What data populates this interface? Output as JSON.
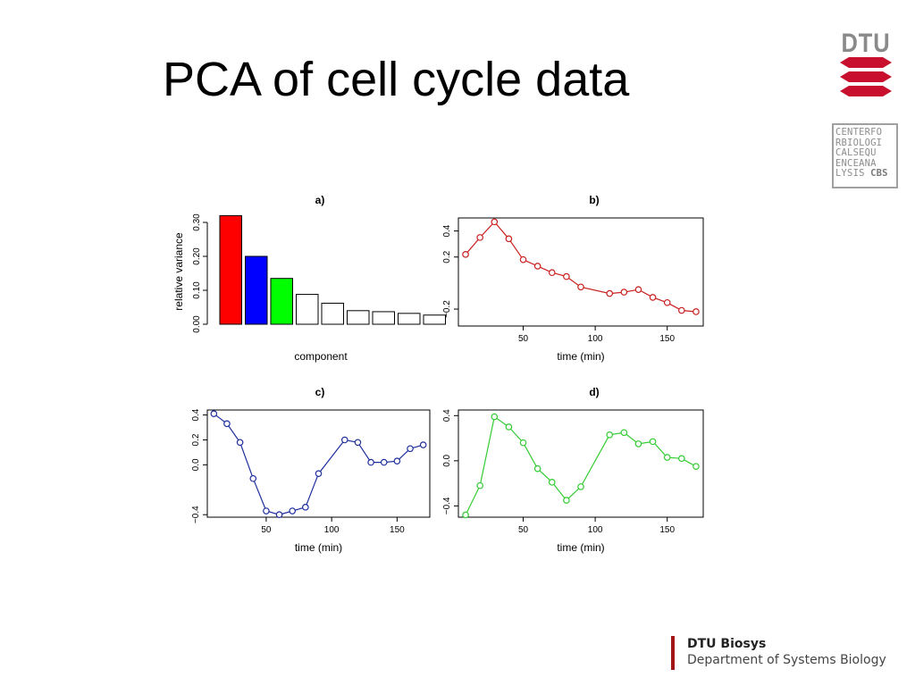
{
  "slide": {
    "title": "PCA of cell cycle data"
  },
  "branding": {
    "logo_text": "DTU",
    "logo_color": "#c8102e",
    "cbs_lines": [
      "CENTERFO",
      "RBIOLOGI",
      "CALSEQU",
      "ENCEANA",
      "LYSIS"
    ],
    "cbs_bold": "CBS",
    "footer_org": "DTU Biosys",
    "footer_dept": "Department of Systems Biology",
    "footer_bar_color": "#a01515"
  },
  "chart_data": [
    {
      "type": "bar",
      "panel": "a)",
      "xlabel": "component",
      "ylabel": "relative variance",
      "ylim": [
        0,
        0.32
      ],
      "yticks": [
        "0.00",
        "0.10",
        "0.20",
        "0.30"
      ],
      "values": [
        0.32,
        0.2,
        0.135,
        0.088,
        0.062,
        0.04,
        0.037,
        0.032,
        0.027
      ],
      "colors": [
        "#ff0000",
        "#0000ff",
        "#00ff00",
        "#ffffff",
        "#ffffff",
        "#ffffff",
        "#ffffff",
        "#ffffff",
        "#ffffff"
      ]
    },
    {
      "type": "line",
      "panel": "b)",
      "xlabel": "time (min)",
      "xlim": [
        5,
        175
      ],
      "ylim": [
        -0.33,
        0.5
      ],
      "xticks": [
        "50",
        "100",
        "150"
      ],
      "yticks": [
        "0.4",
        "0.2",
        "−0.2"
      ],
      "color": "#c8201e",
      "x": [
        10,
        20,
        30,
        40,
        50,
        60,
        70,
        80,
        90,
        110,
        120,
        130,
        140,
        150,
        160,
        170
      ],
      "y": [
        0.22,
        0.35,
        0.47,
        0.34,
        0.18,
        0.13,
        0.08,
        0.05,
        -0.03,
        -0.08,
        -0.07,
        -0.05,
        -0.11,
        -0.15,
        -0.21,
        -0.22
      ]
    },
    {
      "type": "line",
      "panel": "c)",
      "xlabel": "time (min)",
      "xlim": [
        5,
        175
      ],
      "ylim": [
        -0.42,
        0.44
      ],
      "xticks": [
        "50",
        "100",
        "150"
      ],
      "yticks": [
        "0.4",
        "0.2",
        "0.0",
        "−0.4"
      ],
      "color": "#1f2f9c",
      "x": [
        10,
        20,
        30,
        40,
        50,
        60,
        70,
        80,
        90,
        110,
        120,
        130,
        140,
        150,
        160,
        170
      ],
      "y": [
        0.41,
        0.33,
        0.18,
        -0.11,
        -0.37,
        -0.4,
        -0.37,
        -0.34,
        -0.07,
        0.2,
        0.18,
        0.02,
        0.02,
        0.03,
        0.13,
        0.16
      ]
    },
    {
      "type": "line",
      "panel": "d)",
      "xlabel": "time (min)",
      "xlim": [
        5,
        175
      ],
      "ylim": [
        -0.5,
        0.45
      ],
      "xticks": [
        "50",
        "100",
        "150"
      ],
      "yticks": [
        "0.4",
        "0.0",
        "−0.4"
      ],
      "color": "#33cc33",
      "x": [
        10,
        20,
        30,
        40,
        50,
        60,
        70,
        80,
        90,
        110,
        120,
        130,
        140,
        150,
        160,
        170
      ],
      "y": [
        -0.48,
        -0.22,
        0.39,
        0.3,
        0.16,
        -0.07,
        -0.19,
        -0.35,
        -0.23,
        0.23,
        0.25,
        0.15,
        0.17,
        0.03,
        0.02,
        -0.05
      ]
    }
  ]
}
